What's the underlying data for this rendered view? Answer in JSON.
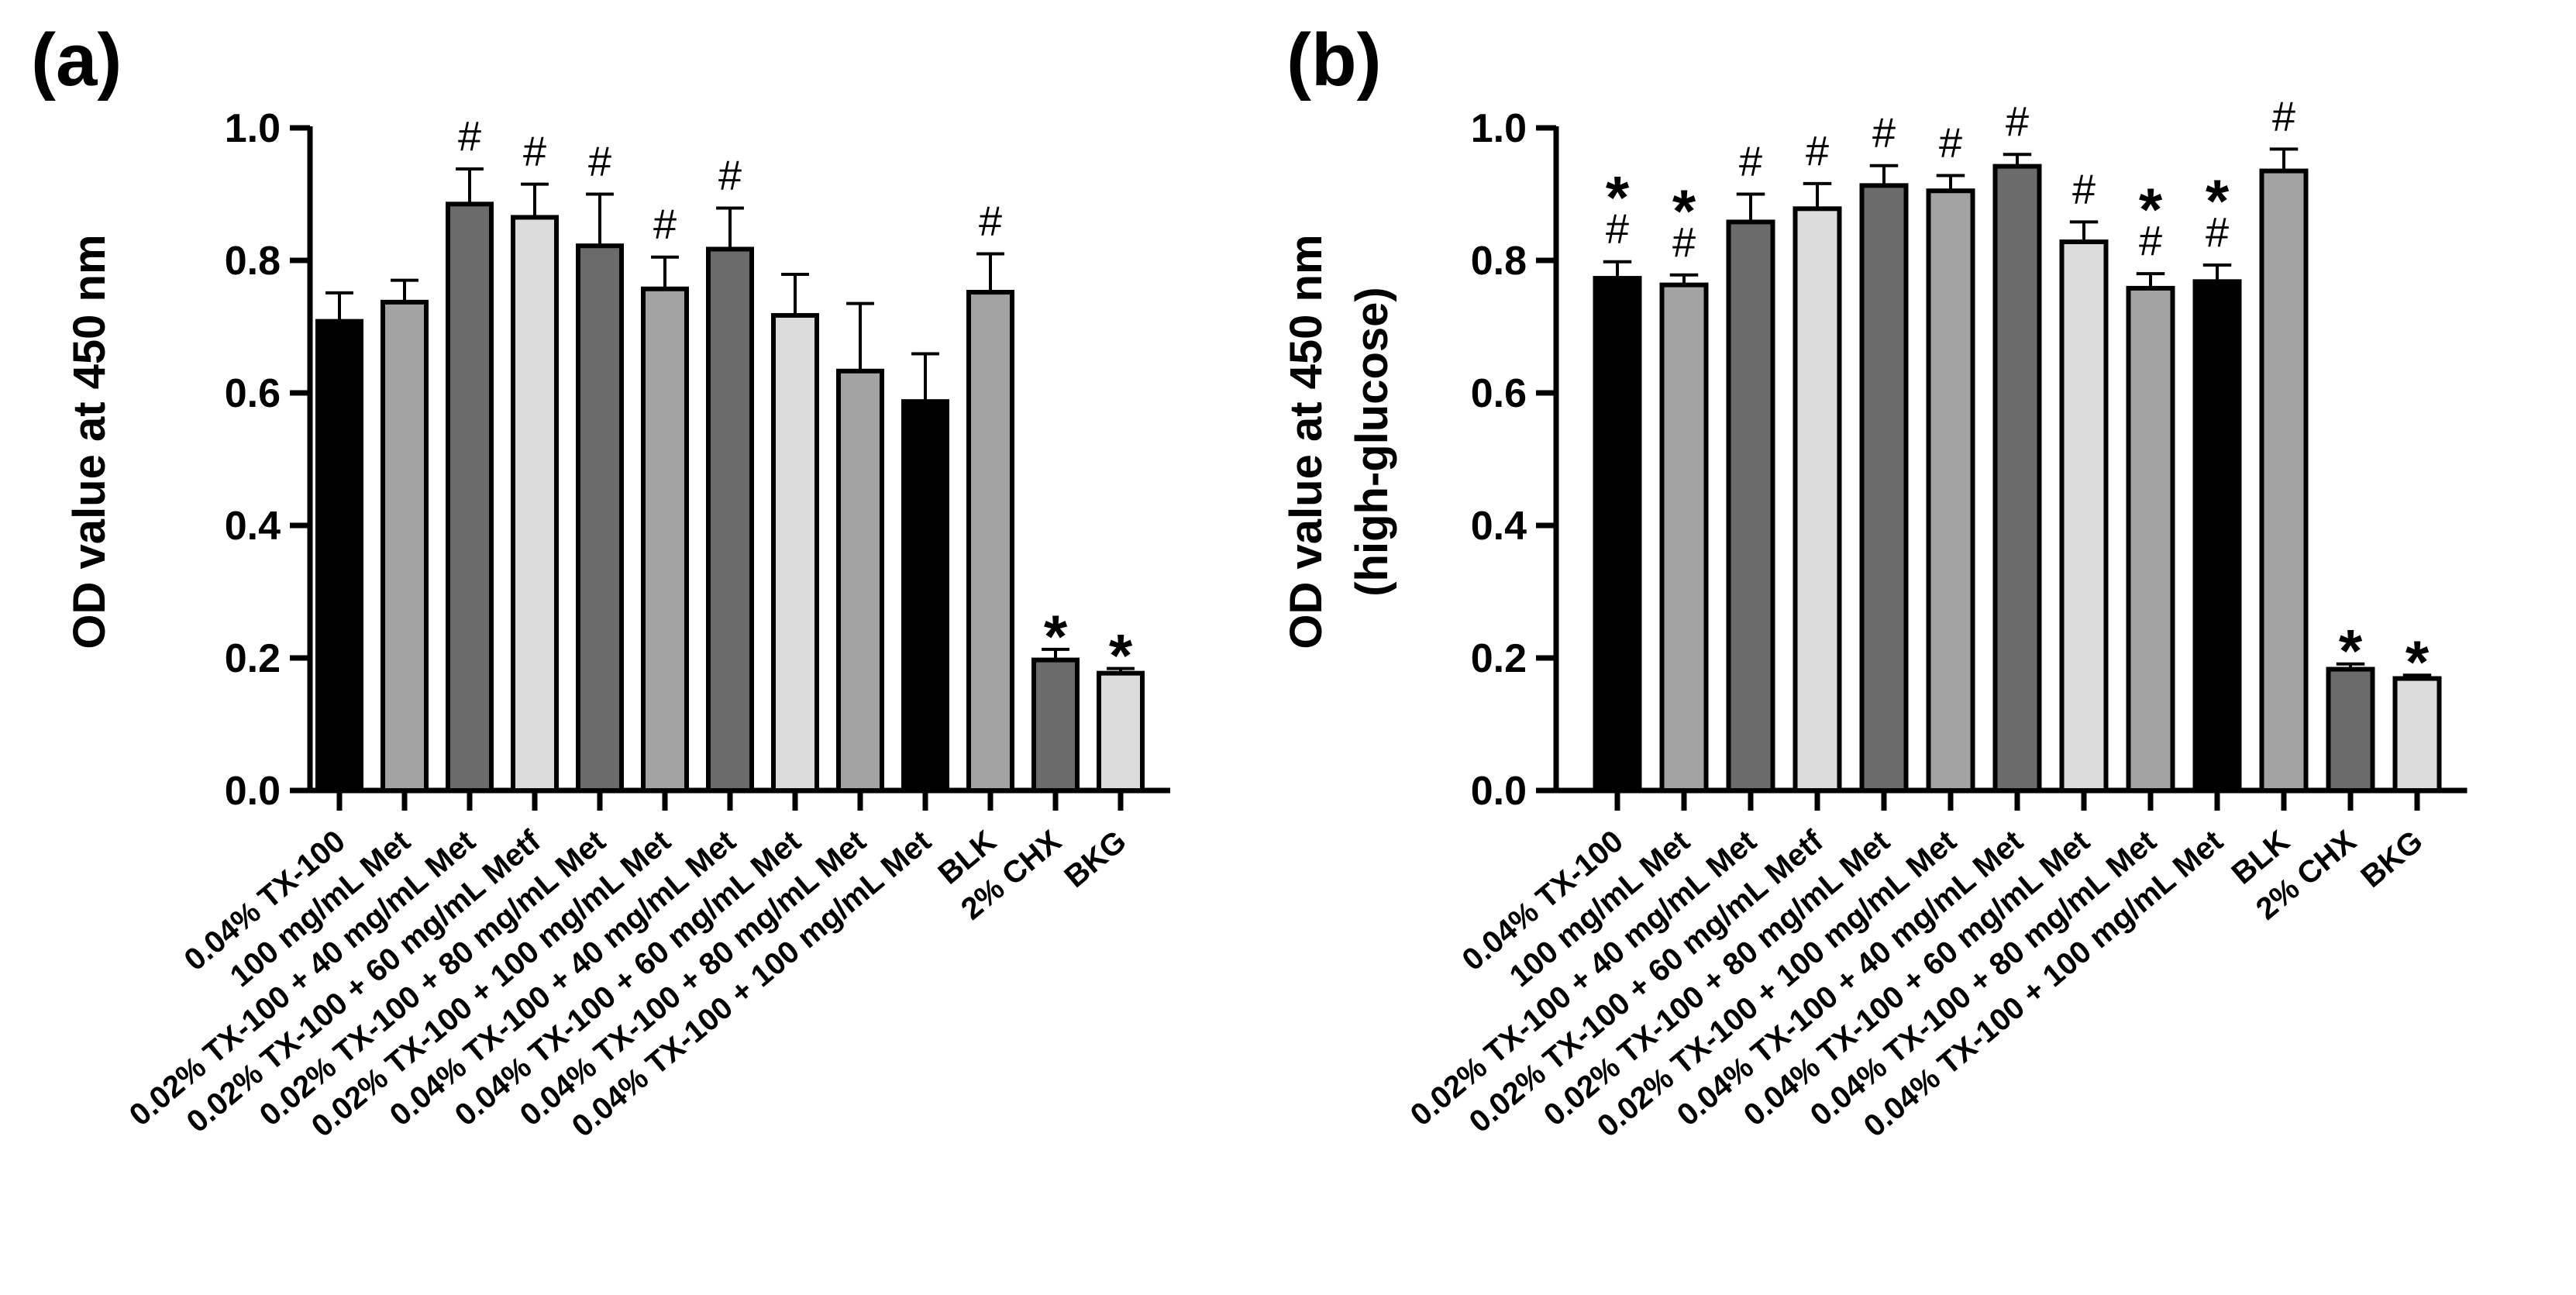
{
  "chart_data": [
    {
      "type": "bar",
      "panel_label": "(a)",
      "ylabel": "OD value at 450 nm",
      "ylim": [
        0,
        1.0
      ],
      "yticks": [
        "0.0",
        "0.2",
        "0.4",
        "0.6",
        "0.8",
        "1.0"
      ],
      "categories": [
        "0.04% TX-100",
        "100 mg/mL Met",
        "0.02% TX-100 + 40 mg/mL Met",
        "0.02% TX-100 + 60 mg/mL Metf",
        "0.02% TX-100 + 80 mg/mL Met",
        "0.02% TX-100 + 100 mg/mL Met",
        "0.04% TX-100 + 40 mg/mL Met",
        "0.04% TX-100 + 60 mg/mL Met",
        "0.04% TX-100 + 80 mg/mL Met",
        "0.04% TX-100 + 100 mg/mL Met",
        "BLK",
        "2% CHX",
        "BKG"
      ],
      "values": [
        0.708,
        0.737,
        0.885,
        0.865,
        0.822,
        0.757,
        0.817,
        0.717,
        0.633,
        0.587,
        0.752,
        0.197,
        0.177
      ],
      "errors": [
        0.043,
        0.033,
        0.053,
        0.05,
        0.078,
        0.048,
        0.062,
        0.062,
        0.102,
        0.072,
        0.058,
        0.016,
        0.007
      ],
      "fills": [
        "#000000",
        "#a3a3a3",
        "#6b6b6b",
        "#dcdcdc",
        "#6b6b6b",
        "#a3a3a3",
        "#6b6b6b",
        "#dcdcdc",
        "#a3a3a3",
        "#000000",
        "#a3a3a3",
        "#6b6b6b",
        "#dcdcdc"
      ],
      "annotations": [
        [],
        [],
        [
          "#"
        ],
        [
          "#"
        ],
        [
          "#"
        ],
        [
          "#"
        ],
        [
          "#"
        ],
        [],
        [],
        [],
        [
          "#"
        ],
        [
          "*"
        ],
        [
          "*"
        ]
      ]
    },
    {
      "type": "bar",
      "panel_label": "(b)",
      "ylabel": "OD value at 450 nm",
      "ylabel2": "(high-glucose)",
      "ylim": [
        0,
        1.0
      ],
      "yticks": [
        "0.0",
        "0.2",
        "0.4",
        "0.6",
        "0.8",
        "1.0"
      ],
      "categories": [
        "0.04% TX-100",
        "100 mg/mL Met",
        "0.02% TX-100 + 40 mg/mL Met",
        "0.02% TX-100 + 60 mg/mL Metf",
        "0.02% TX-100 + 80 mg/mL Met",
        "0.02% TX-100 + 100 mg/mL Met",
        "0.04% TX-100 + 40 mg/mL Met",
        "0.04% TX-100 + 60 mg/mL Met",
        "0.04% TX-100 + 80 mg/mL Met",
        "0.04% TX-100 + 100 mg/mL Met",
        "BLK",
        "2% CHX",
        "BKG"
      ],
      "values": [
        0.773,
        0.763,
        0.858,
        0.878,
        0.913,
        0.905,
        0.942,
        0.828,
        0.758,
        0.768,
        0.935,
        0.183,
        0.169
      ],
      "errors": [
        0.025,
        0.015,
        0.042,
        0.038,
        0.03,
        0.023,
        0.018,
        0.03,
        0.022,
        0.025,
        0.033,
        0.008,
        0.005
      ],
      "fills": [
        "#000000",
        "#a3a3a3",
        "#6b6b6b",
        "#dcdcdc",
        "#6b6b6b",
        "#a3a3a3",
        "#6b6b6b",
        "#dcdcdc",
        "#a3a3a3",
        "#000000",
        "#a3a3a3",
        "#6b6b6b",
        "#dcdcdc"
      ],
      "annotations": [
        [
          "#",
          "*"
        ],
        [
          "#",
          "*"
        ],
        [
          "#"
        ],
        [
          "#"
        ],
        [
          "#"
        ],
        [
          "#"
        ],
        [
          "#"
        ],
        [
          "#"
        ],
        [
          "#",
          "*"
        ],
        [
          "#",
          "*"
        ],
        [
          "#"
        ],
        [
          "*"
        ],
        [
          "*"
        ]
      ]
    }
  ]
}
